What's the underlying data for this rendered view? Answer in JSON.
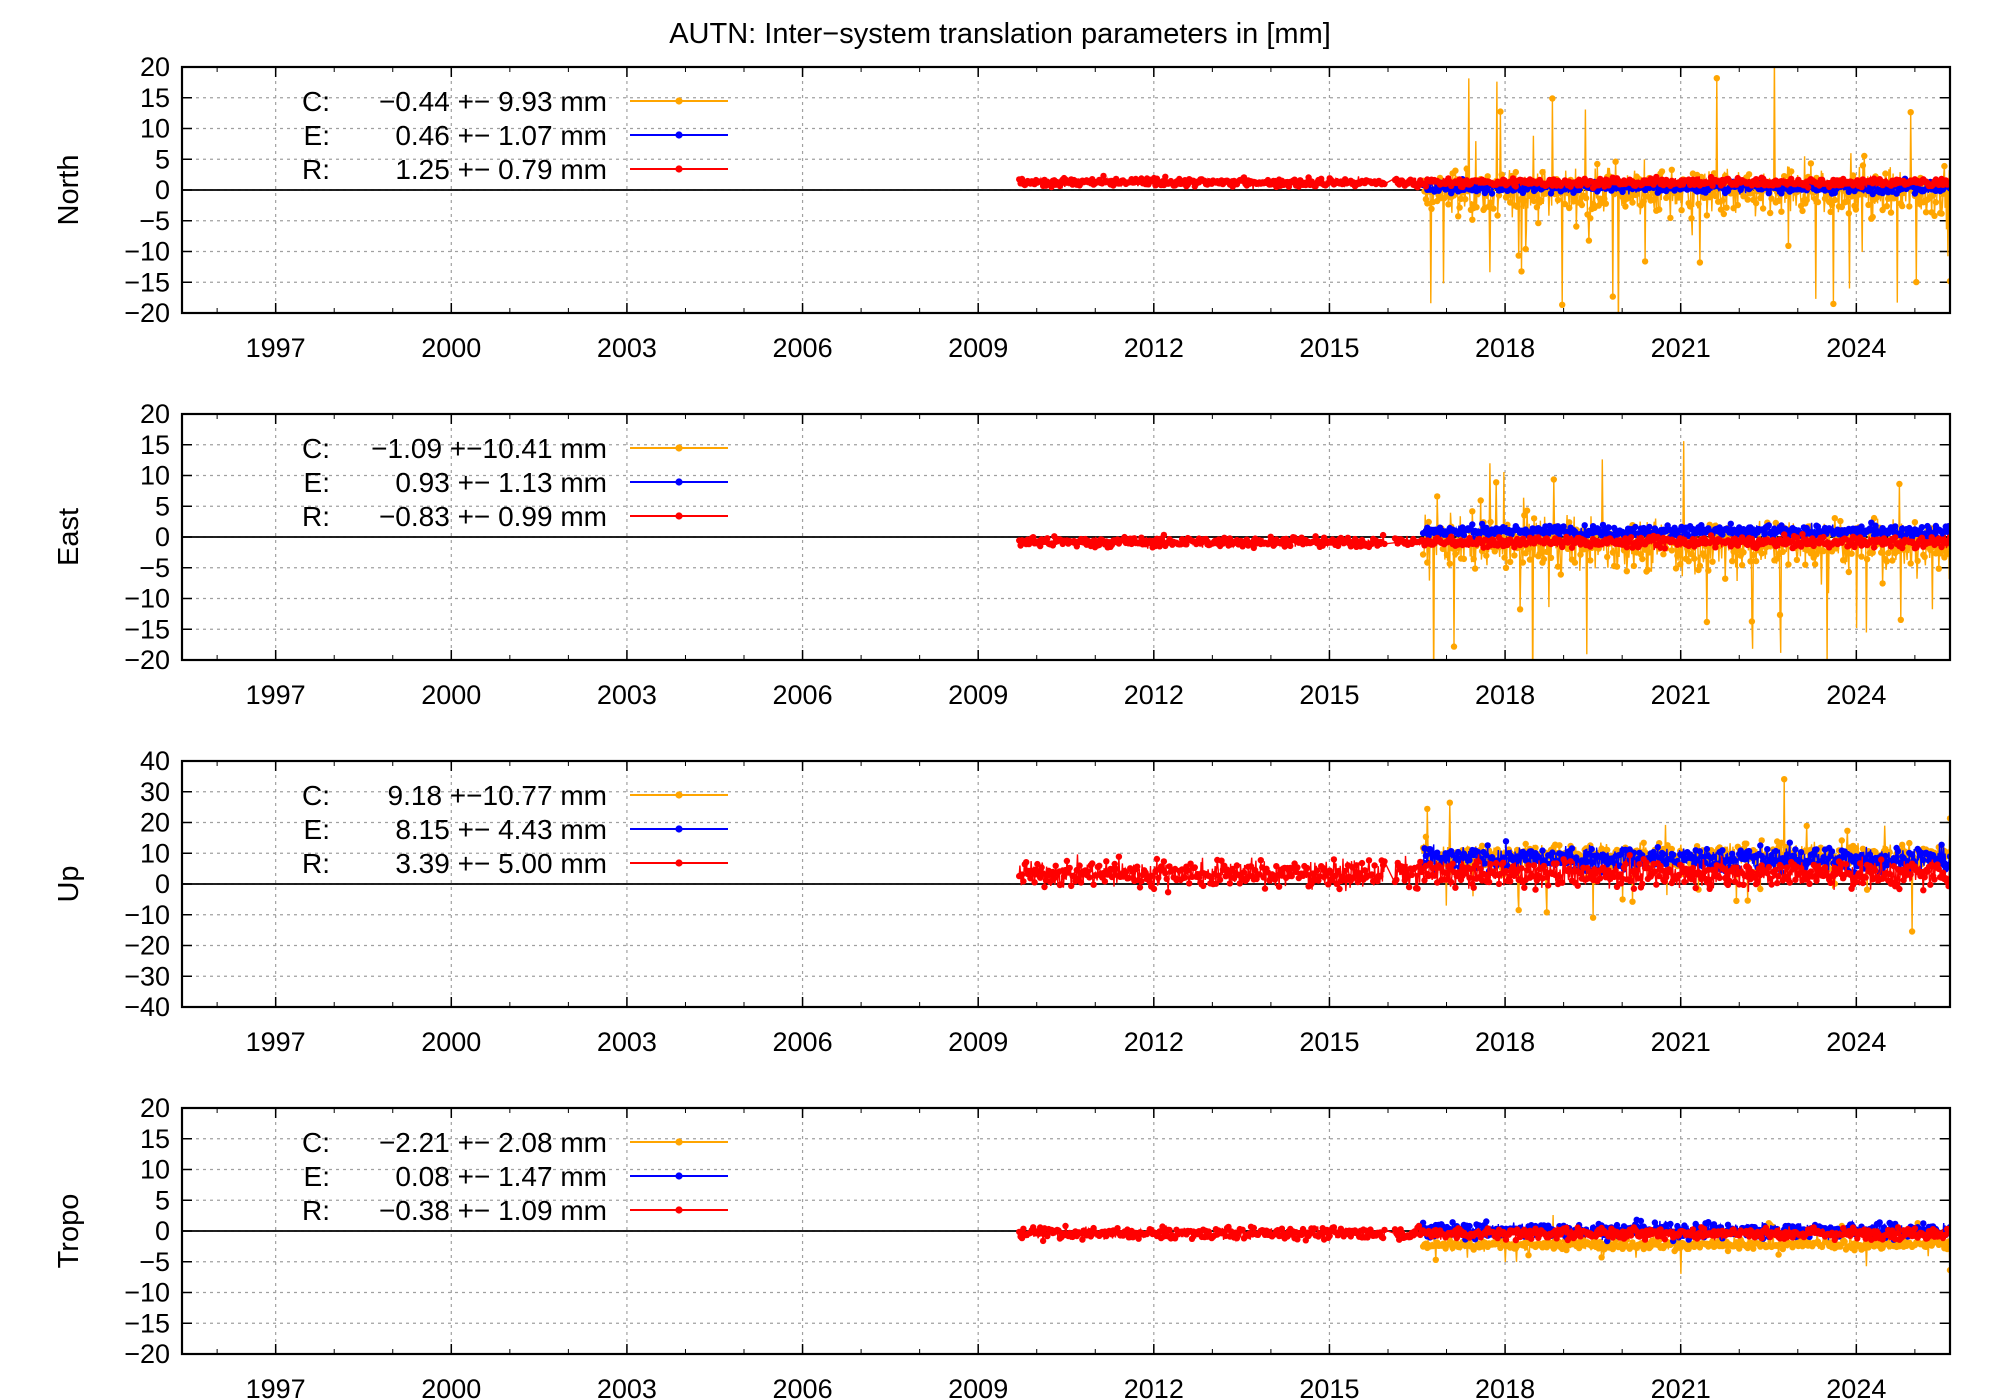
{
  "title": "AUTN: Inter−system translation parameters in [mm]",
  "colors": {
    "C": "#ffa500",
    "E": "#0000ff",
    "R": "#ff0000",
    "grid": "#a0a0a0",
    "axis": "#000000"
  },
  "chart_data": [
    {
      "type": "scatter",
      "ylabel": "North",
      "xlim": [
        1995.4,
        2025.6
      ],
      "ylim": [
        -20,
        20
      ],
      "y_ticks": [
        "20",
        "15",
        "10",
        "5",
        "0",
        "−5",
        "−10",
        "−15",
        "−20"
      ],
      "x_ticks": [
        "1997",
        "2000",
        "2003",
        "2006",
        "2009",
        "2012",
        "2015",
        "2018",
        "2021",
        "2024"
      ],
      "grid": true,
      "legend_position": "top-left",
      "series": [
        {
          "name": "C",
          "label": "C:",
          "stat": "−0.44 +− 9.93 mm",
          "mean": -0.44,
          "sigma": 9.93,
          "start": 2016.6,
          "end": 2025.6
        },
        {
          "name": "E",
          "label": "E:",
          "stat": "0.46 +− 1.07 mm",
          "mean": 0.46,
          "sigma": 1.07,
          "start": 2016.6,
          "end": 2025.6
        },
        {
          "name": "R",
          "label": "R:",
          "stat": "1.25 +− 0.79 mm",
          "mean": 1.25,
          "sigma": 0.79,
          "start": 2009.7,
          "end": 2025.6
        }
      ]
    },
    {
      "type": "scatter",
      "ylabel": "East",
      "xlim": [
        1995.4,
        2025.6
      ],
      "ylim": [
        -20,
        20
      ],
      "y_ticks": [
        "20",
        "15",
        "10",
        "5",
        "0",
        "−5",
        "−10",
        "−15",
        "−20"
      ],
      "x_ticks": [
        "1997",
        "2000",
        "2003",
        "2006",
        "2009",
        "2012",
        "2015",
        "2018",
        "2021",
        "2024"
      ],
      "grid": true,
      "legend_position": "top-left",
      "series": [
        {
          "name": "C",
          "label": "C:",
          "stat": "−1.09 +−10.41 mm",
          "mean": -1.09,
          "sigma": 10.41,
          "start": 2016.6,
          "end": 2025.6
        },
        {
          "name": "E",
          "label": "E:",
          "stat": "0.93 +− 1.13 mm",
          "mean": 0.93,
          "sigma": 1.13,
          "start": 2016.6,
          "end": 2025.6
        },
        {
          "name": "R",
          "label": "R:",
          "stat": "−0.83 +− 0.99 mm",
          "mean": -0.83,
          "sigma": 0.99,
          "start": 2009.7,
          "end": 2025.6
        }
      ]
    },
    {
      "type": "scatter",
      "ylabel": "Up",
      "xlim": [
        1995.4,
        2025.6
      ],
      "ylim": [
        -40,
        40
      ],
      "y_ticks": [
        "40",
        "30",
        "20",
        "10",
        "0",
        "−10",
        "−20",
        "−30",
        "−40"
      ],
      "x_ticks": [
        "1997",
        "2000",
        "2003",
        "2006",
        "2009",
        "2012",
        "2015",
        "2018",
        "2021",
        "2024"
      ],
      "grid": true,
      "legend_position": "top-left",
      "series": [
        {
          "name": "C",
          "label": "C:",
          "stat": "9.18 +−10.77 mm",
          "mean": 9.18,
          "sigma": 10.77,
          "start": 2016.6,
          "end": 2025.6
        },
        {
          "name": "E",
          "label": "E:",
          "stat": "8.15 +− 4.43 mm",
          "mean": 8.15,
          "sigma": 4.43,
          "start": 2016.6,
          "end": 2025.6
        },
        {
          "name": "R",
          "label": "R:",
          "stat": "3.39 +− 5.00 mm",
          "mean": 3.39,
          "sigma": 5.0,
          "start": 2009.7,
          "end": 2025.6
        }
      ]
    },
    {
      "type": "scatter",
      "ylabel": "Tropo",
      "xlim": [
        1995.4,
        2025.6
      ],
      "ylim": [
        -20,
        20
      ],
      "y_ticks": [
        "20",
        "15",
        "10",
        "5",
        "0",
        "−5",
        "−10",
        "−15",
        "−20"
      ],
      "x_ticks": [
        "1997",
        "2000",
        "2003",
        "2006",
        "2009",
        "2012",
        "2015",
        "2018",
        "2021",
        "2024"
      ],
      "grid": true,
      "legend_position": "top-left",
      "series": [
        {
          "name": "C",
          "label": "C:",
          "stat": "−2.21 +− 2.08 mm",
          "mean": -2.21,
          "sigma": 2.08,
          "start": 2016.6,
          "end": 2025.6
        },
        {
          "name": "E",
          "label": "E:",
          "stat": "0.08 +− 1.47 mm",
          "mean": 0.08,
          "sigma": 1.47,
          "start": 2016.6,
          "end": 2025.6
        },
        {
          "name": "R",
          "label": "R:",
          "stat": "−0.38 +− 1.09 mm",
          "mean": -0.38,
          "sigma": 1.09,
          "start": 2009.7,
          "end": 2025.6
        }
      ]
    }
  ]
}
